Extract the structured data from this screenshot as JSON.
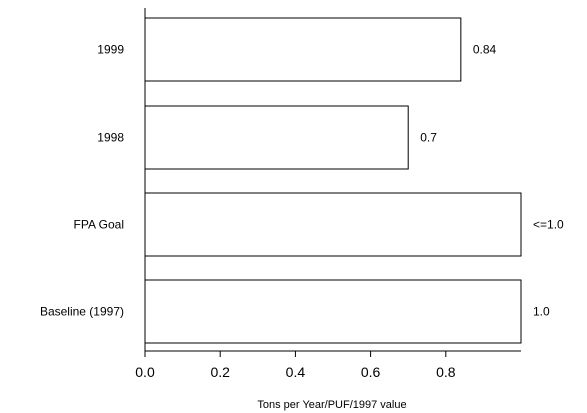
{
  "chart_data": {
    "type": "bar",
    "orientation": "horizontal",
    "categories": [
      "1999",
      "1998",
      "FPA Goal",
      "Baseline (1997)"
    ],
    "values": [
      0.84,
      0.7,
      1.0,
      1.0
    ],
    "value_labels": [
      "0.84",
      "0.7",
      "<=1.0",
      "1.0"
    ],
    "xlabel": "Tons per Year/PUF/1997 value",
    "ylabel": "",
    "xlim": [
      0,
      1.0
    ],
    "xticks": [
      0.0,
      0.2,
      0.4,
      0.6,
      0.8
    ],
    "xtick_labels": [
      "0.0",
      "0.2",
      "0.4",
      "0.6",
      "0.8"
    ],
    "grid": false,
    "bar_fill": "#ffffff",
    "bar_stroke": "#000000"
  }
}
